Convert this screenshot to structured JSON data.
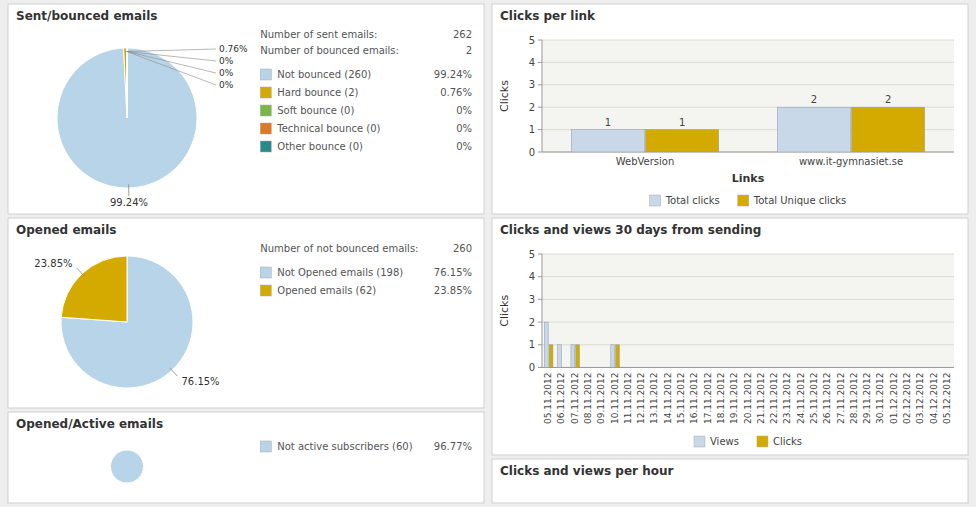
{
  "chart_data": [
    {
      "type": "pie",
      "title": "Sent/bounced emails",
      "categories": [
        "Not bounced (260)",
        "Hard bounce (2)",
        "Soft bounce (0)",
        "Technical bounce (0)",
        "Other bounce (0)"
      ],
      "values": [
        99.24,
        0.76,
        0.001,
        0.001,
        0.001
      ],
      "value_labels": [
        "99.24%",
        "0.76%",
        "0%",
        "0%",
        "0%"
      ],
      "colors": [
        "#b8d4e8",
        "#d4aa00",
        "#7ab648",
        "#e07820",
        "#2a8a8a"
      ],
      "data_labels": true,
      "legend": "right",
      "annotations": [
        {
          "text": "Number of sent emails:",
          "value": 262
        },
        {
          "text": "Number of bounced emails:",
          "value": 2
        }
      ]
    },
    {
      "type": "pie",
      "title": "Opened emails",
      "categories": [
        "Not Opened emails (198)",
        "Opened emails (62)"
      ],
      "values": [
        76.15,
        23.85
      ],
      "value_labels": [
        "76.15%",
        "23.85%"
      ],
      "colors": [
        "#b8d4e8",
        "#d4aa00"
      ],
      "data_labels": true,
      "legend": "right",
      "annotations": [
        {
          "text": "Number of not bounced emails:",
          "value": 260
        }
      ]
    },
    {
      "type": "pie",
      "title": "Opened/Active emails",
      "categories": [
        "Not active subscribers (60)"
      ],
      "values": [
        96.77
      ],
      "value_labels": [
        "96.77%"
      ],
      "colors": [
        "#b8d4e8"
      ],
      "data_labels": false,
      "legend": "right"
    },
    {
      "type": "bar",
      "title": "Clicks per link",
      "categories": [
        "WebVersion",
        "www.it-gymnasiet.se"
      ],
      "series": [
        {
          "name": "Total clicks",
          "color": "#c8d8e8",
          "values": [
            1,
            2
          ]
        },
        {
          "name": "Total Unique clicks",
          "color": "#d4aa00",
          "values": [
            1,
            2
          ]
        }
      ],
      "xlabel": "Links",
      "ylabel": "Clicks",
      "ylim": [
        0,
        5
      ],
      "yticks": [
        0,
        1,
        2,
        3,
        4,
        5
      ],
      "grid": true,
      "data_labels": true,
      "legend": "bottom"
    },
    {
      "type": "bar",
      "title": "Clicks and views 30 days from sending",
      "categories": [
        "05.11.2012",
        "06.11.2012",
        "07.11.2012",
        "08.11.2012",
        "09.11.2012",
        "10.11.2012",
        "11.11.2012",
        "12.11.2012",
        "13.11.2012",
        "14.11.2012",
        "15.11.2012",
        "16.11.2012",
        "17.11.2012",
        "18.11.2012",
        "19.11.2012",
        "20.11.2012",
        "21.11.2012",
        "22.11.2012",
        "23.11.2012",
        "24.11.2012",
        "25.11.2012",
        "26.11.2012",
        "27.11.2012",
        "28.11.2012",
        "29.11.2012",
        "30.11.2012",
        "01.12.2012",
        "02.12.2012",
        "03.12.2012",
        "04.12.2012",
        "05.12.2012"
      ],
      "series": [
        {
          "name": "Views",
          "color": "#c8d8e8",
          "values": [
            2,
            1,
            1,
            0,
            0,
            1,
            0,
            0,
            0,
            0,
            0,
            0,
            0,
            0,
            0,
            0,
            0,
            0,
            0,
            0,
            0,
            0,
            0,
            0,
            0,
            0,
            0,
            0,
            0,
            0,
            0
          ]
        },
        {
          "name": "Clicks",
          "color": "#d4aa00",
          "values": [
            1,
            0,
            1,
            0,
            0,
            1,
            0,
            0,
            0,
            0,
            0,
            0,
            0,
            0,
            0,
            0,
            0,
            0,
            0,
            0,
            0,
            0,
            0,
            0,
            0,
            0,
            0,
            0,
            0,
            0,
            0
          ]
        }
      ],
      "ylabel": "Clicks",
      "ylim": [
        0,
        5
      ],
      "yticks": [
        0,
        1,
        2,
        3,
        4,
        5
      ],
      "grid": true,
      "legend": "bottom"
    },
    {
      "type": "bar",
      "title": "Clicks and views per hour"
    }
  ]
}
